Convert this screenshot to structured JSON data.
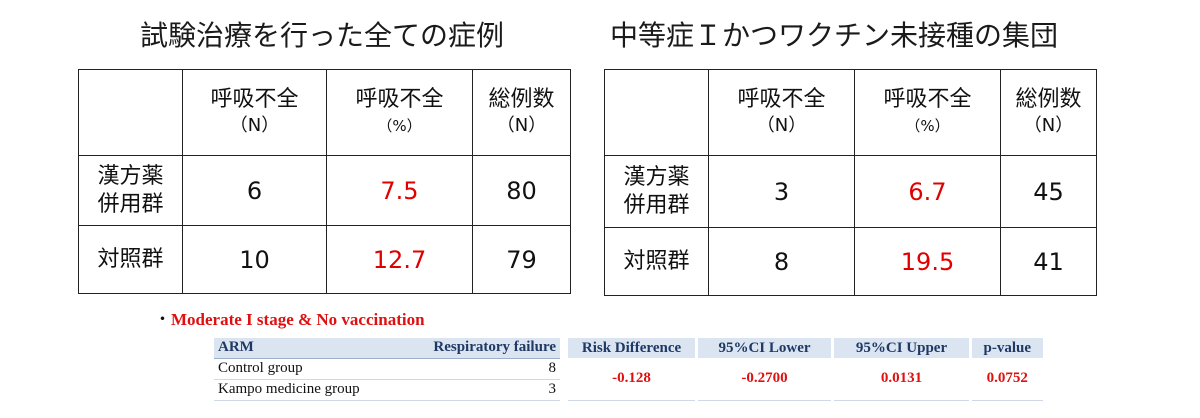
{
  "left": {
    "title": "試験治療を行った全ての症例",
    "headers": [
      {
        "top": "呼吸不全",
        "bottom": "（N）"
      },
      {
        "top": "呼吸不全",
        "bottom": "（%）"
      },
      {
        "top": "総例数",
        "bottom": "（N）"
      }
    ],
    "rows": [
      {
        "label_line1": "漢方薬",
        "label_line2": "併用群",
        "n": "6",
        "pct": "7.5",
        "total": "80"
      },
      {
        "label_line1": "対照群",
        "label_line2": "",
        "n": "10",
        "pct": "12.7",
        "total": "79"
      }
    ]
  },
  "right": {
    "title": "中等症Ｉかつワクチン未接種の集団",
    "headers": [
      {
        "top": "呼吸不全",
        "bottom": "（N）"
      },
      {
        "top": "呼吸不全",
        "bottom": "（%）"
      },
      {
        "top": "総例数",
        "bottom": "（N）"
      }
    ],
    "rows": [
      {
        "label_line1": "漢方薬",
        "label_line2": "併用群",
        "n": "3",
        "pct": "6.7",
        "total": "45"
      },
      {
        "label_line1": "対照群",
        "label_line2": "",
        "n": "8",
        "pct": "19.5",
        "total": "41"
      }
    ]
  },
  "note": {
    "bullet": "・",
    "text": "Moderate I stage & No vaccination"
  },
  "arm_table": {
    "headers": [
      "ARM",
      "Respiratory failure"
    ],
    "rows": [
      {
        "arm": "Control group",
        "value": "8"
      },
      {
        "arm": "Kampo medicine group",
        "value": "3"
      }
    ]
  },
  "stats_table": {
    "headers": [
      "Risk Difference",
      "95%CI Lower",
      "95%CI Upper",
      "p-value"
    ],
    "values": [
      "-0.128",
      "-0.2700",
      "0.0131",
      "0.0752"
    ]
  },
  "colors": {
    "highlight_red": "#e00000",
    "header_fill": "#dbe5f1",
    "header_text": "#1f3864"
  }
}
